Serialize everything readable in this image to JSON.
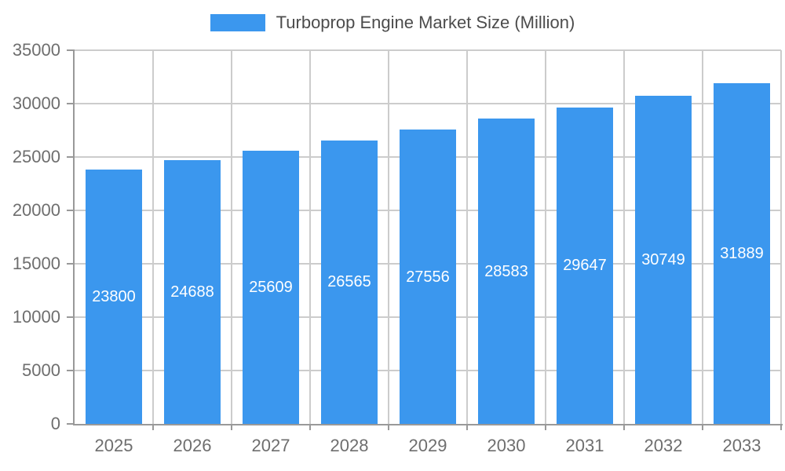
{
  "chart_data": {
    "type": "bar",
    "title": "Turboprop Engine Market Size (Million)",
    "legend": [
      "Turboprop Engine Market Size (Million)"
    ],
    "legend_position": "top",
    "categories": [
      "2025",
      "2026",
      "2027",
      "2028",
      "2029",
      "2030",
      "2031",
      "2032",
      "2033"
    ],
    "values": [
      23800,
      24688,
      25609,
      26565,
      27556,
      28583,
      29647,
      30749,
      31889
    ],
    "xlabel": "",
    "ylabel": "",
    "ylim": [
      0,
      35000
    ],
    "yticks": [
      0,
      5000,
      10000,
      15000,
      20000,
      25000,
      30000,
      35000
    ],
    "grid": true,
    "bar_color": "#3b97ee",
    "value_label_color": "#ffffff"
  },
  "colors": {
    "background": "#ffffff",
    "grid": "#cccccc",
    "axis": "#999999",
    "tick_label": "#6e6e6e",
    "legend_text": "#4c4c4c"
  }
}
